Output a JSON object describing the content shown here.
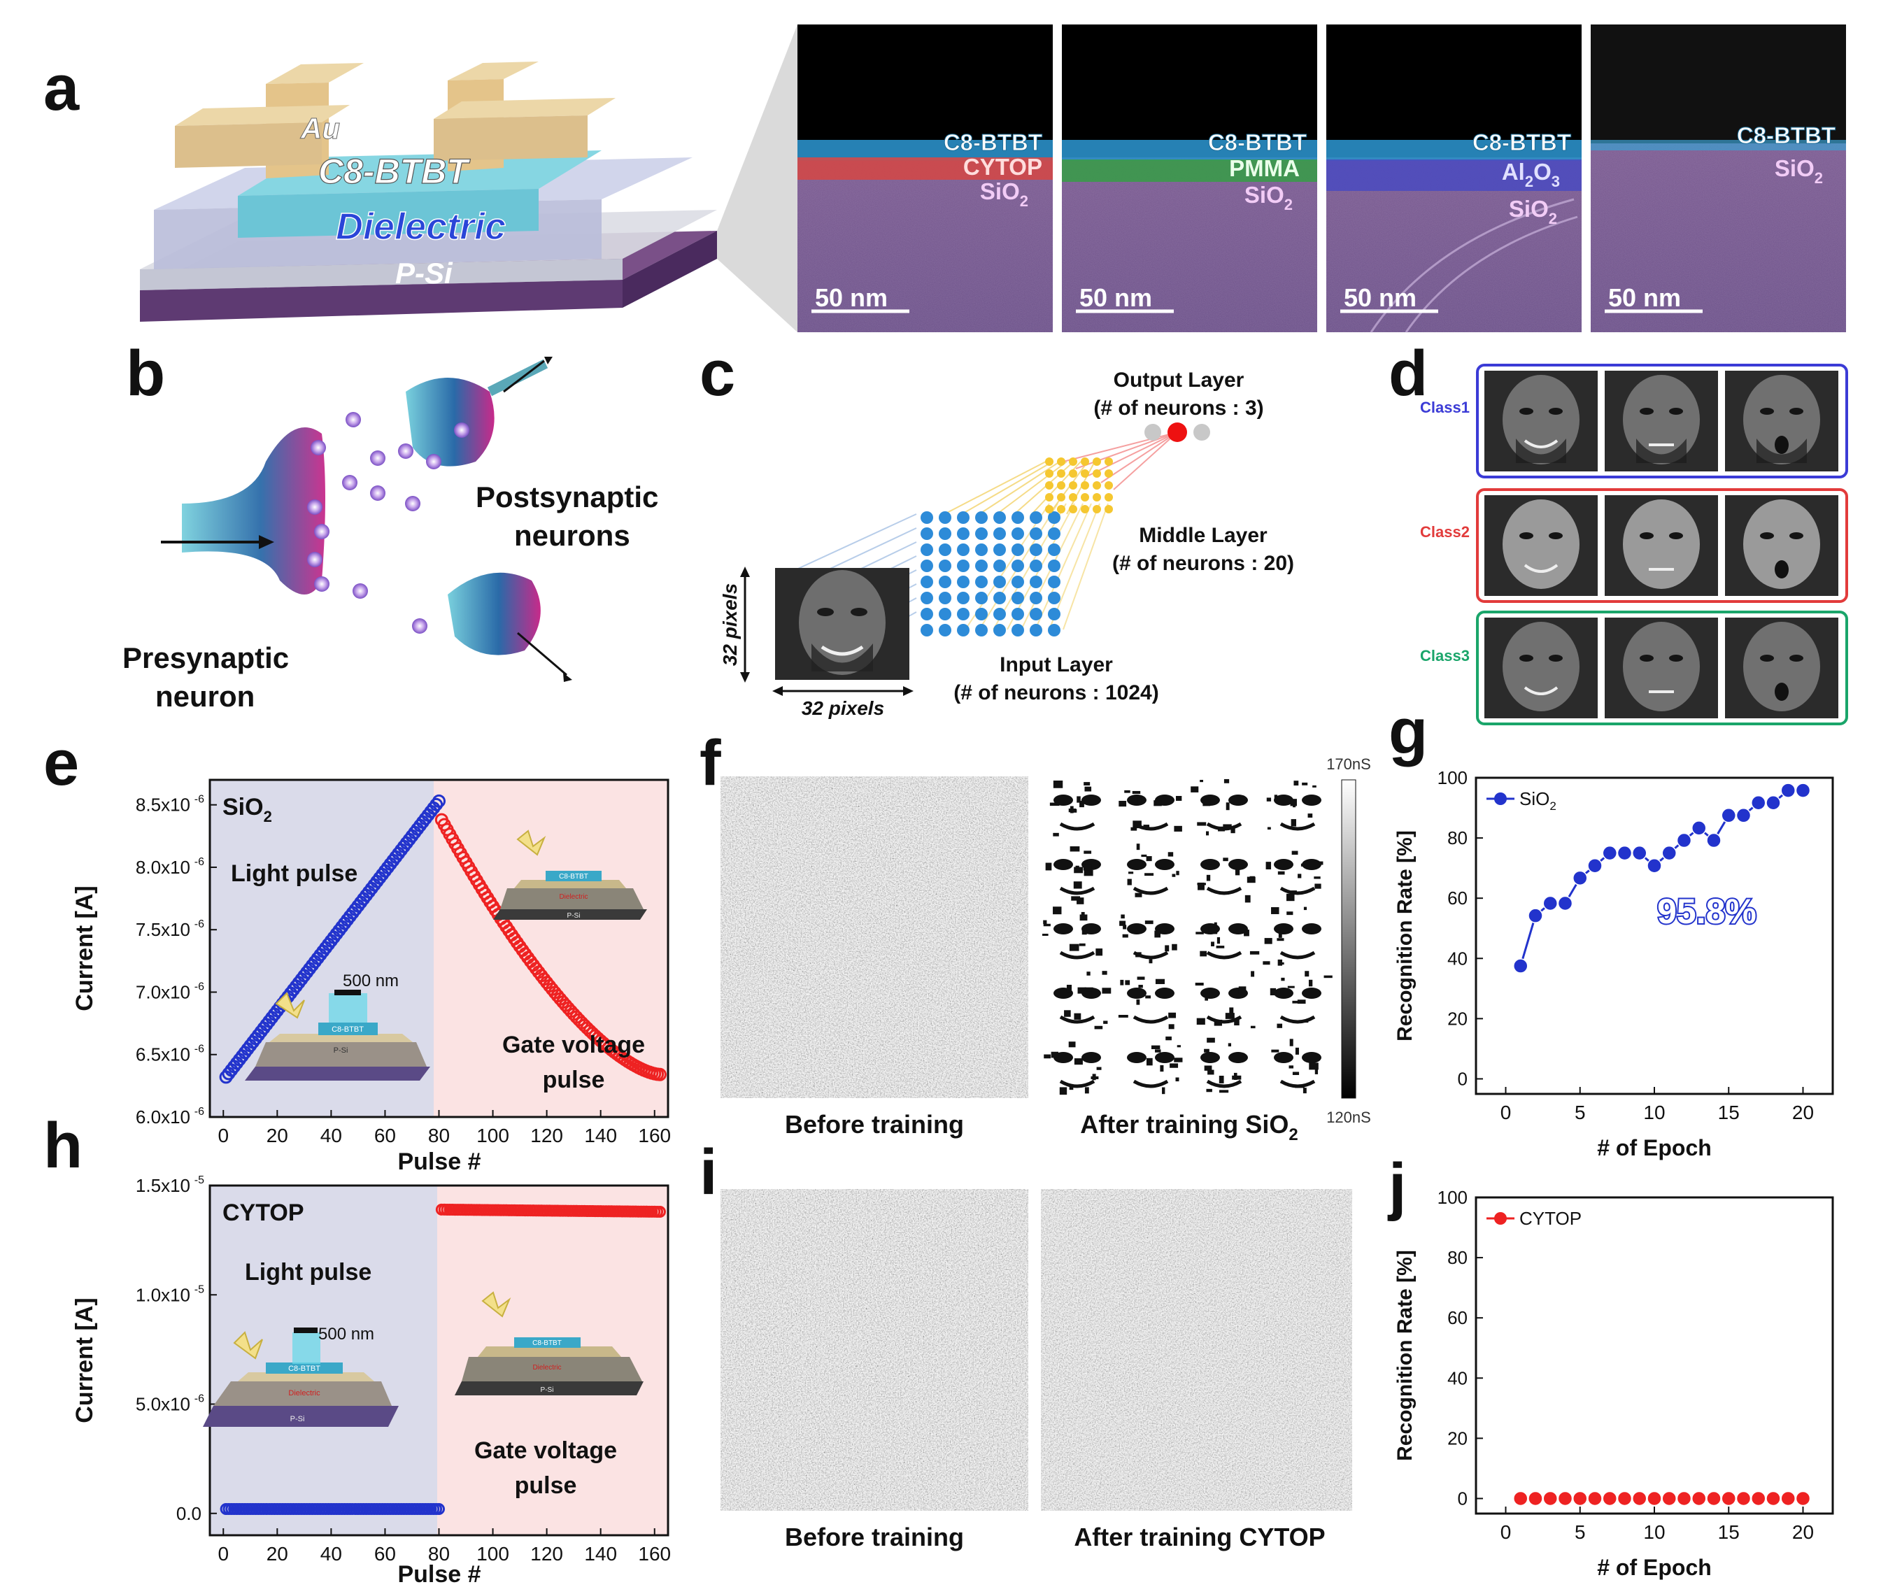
{
  "panels": {
    "a": "a",
    "b": "b",
    "c": "c",
    "d": "d",
    "e": "e",
    "f": "f",
    "g": "g",
    "h": "h",
    "i": "i",
    "j": "j"
  },
  "panel_a": {
    "device_layers": [
      "Au",
      "C8-BTBT",
      "Dielectric",
      "P-Si"
    ],
    "sem_images": [
      {
        "top": "C8-BTBT",
        "middle": "CYTOP",
        "bottom": "SiO",
        "bottom_sub": "2",
        "scale": "50 nm"
      },
      {
        "top": "C8-BTBT",
        "middle": "PMMA",
        "bottom": "SiO",
        "bottom_sub": "2",
        "scale": "50 nm"
      },
      {
        "top": "C8-BTBT",
        "middle": "Al",
        "middle_sub1": "2",
        "middle_mid": "O",
        "middle_sub2": "3",
        "bottom": "SiO",
        "bottom_sub": "2",
        "scale": "50 nm"
      },
      {
        "top": "C8-BTBT",
        "bottom": "SiO",
        "bottom_sub": "2",
        "scale": "50 nm"
      }
    ]
  },
  "panel_b": {
    "presynaptic": [
      "Presynaptic",
      "neuron"
    ],
    "postsynaptic": [
      "Postsynaptic",
      "neurons"
    ]
  },
  "panel_c": {
    "output": [
      "Output Layer",
      "(# of neurons : 3)"
    ],
    "middle": [
      "Middle Layer",
      "(# of neurons : 20)"
    ],
    "input": [
      "Input Layer",
      "(# of neurons : 1024)"
    ],
    "pixels_v": "32 pixels",
    "pixels_h": "32 pixels"
  },
  "panel_d": {
    "classes": [
      {
        "label": "Class1",
        "color": "#3b3bd6"
      },
      {
        "label": "Class2",
        "color": "#e23b3b"
      },
      {
        "label": "Class3",
        "color": "#1aa56a"
      }
    ]
  },
  "panel_e": {
    "material": "SiO",
    "material_sub": "2",
    "ylabel": "Current [A]",
    "xlabel": "Pulse #",
    "yticks": [
      "6.0x10",
      "6.5x10",
      "7.0x10",
      "7.5x10",
      "8.0x10",
      "8.5x10"
    ],
    "ytick_exp": "-6",
    "xticks": [
      "0",
      "20",
      "40",
      "60",
      "80",
      "100",
      "120",
      "140",
      "160"
    ],
    "light_label": "Light pulse",
    "gate_label": [
      "Gate voltage",
      "pulse"
    ],
    "wavelength": "500 nm",
    "inset_text": [
      "C8-BTBT",
      "Dielectric",
      "P-Si"
    ]
  },
  "panel_h": {
    "material": "CYTOP",
    "ylabel": "Current [A]",
    "xlabel": "Pulse #",
    "yticks": [
      "0.0",
      "5.0x10",
      "1.0x10",
      "1.5x10"
    ],
    "ytick_exps": [
      "",
      "-6",
      "-5",
      "-5"
    ],
    "xticks": [
      "0",
      "20",
      "40",
      "60",
      "80",
      "100",
      "120",
      "140",
      "160"
    ],
    "light_label": "Light pulse",
    "gate_label": [
      "Gate voltage",
      "pulse"
    ],
    "wavelength": "500 nm",
    "inset_text": [
      "C8-BTBT",
      "Dielectric",
      "P-Si"
    ]
  },
  "panel_f": {
    "before": "Before training",
    "after": "After training SiO",
    "after_sub": "2",
    "cbar_max": "170nS",
    "cbar_min": "120nS"
  },
  "panel_i": {
    "before": "Before training",
    "after": "After training CYTOP"
  },
  "panel_g": {
    "ylabel": "Recognition Rate [%]",
    "xlabel": "# of Epoch",
    "legend": "SiO",
    "legend_sub": "2",
    "annotation": "95.8%",
    "yticks": [
      "0",
      "20",
      "40",
      "60",
      "80",
      "100"
    ],
    "xticks": [
      "0",
      "5",
      "10",
      "15",
      "20"
    ]
  },
  "panel_j": {
    "ylabel": "Recognition Rate [%]",
    "xlabel": "# of Epoch",
    "legend": "CYTOP",
    "yticks": [
      "0",
      "20",
      "40",
      "60",
      "80",
      "100"
    ],
    "xticks": [
      "0",
      "5",
      "10",
      "15",
      "20"
    ]
  },
  "chart_data": [
    {
      "type": "scatter",
      "id": "e",
      "title": "SiO2",
      "xlabel": "Pulse #",
      "ylabel": "Current [A]",
      "xlim": [
        -5,
        165
      ],
      "ylim": [
        6e-06,
        8.7e-06
      ],
      "series": [
        {
          "name": "Light pulse",
          "color": "#2233cc",
          "x_start": 1,
          "x_end": 80,
          "y_start": 6.32e-06,
          "y_end": 8.53e-06,
          "shape": "linear"
        },
        {
          "name": "Gate voltage pulse",
          "color": "#ee2222",
          "x_start": 81,
          "x_end": 162,
          "y_start": 8.38e-06,
          "y_end": 6.34e-06,
          "shape": "decay"
        }
      ]
    },
    {
      "type": "scatter",
      "id": "h",
      "title": "CYTOP",
      "xlabel": "Pulse #",
      "ylabel": "Current [A]",
      "xlim": [
        -5,
        165
      ],
      "ylim": [
        -1e-06,
        1.5e-05
      ],
      "series": [
        {
          "name": "Light pulse",
          "color": "#2233cc",
          "x_start": 1,
          "x_end": 80,
          "y_start": 2e-07,
          "y_end": 2e-07,
          "shape": "linear"
        },
        {
          "name": "Gate voltage pulse",
          "color": "#ee2222",
          "x_start": 81,
          "x_end": 162,
          "y_start": 1.39e-05,
          "y_end": 1.38e-05,
          "shape": "linear"
        }
      ]
    },
    {
      "type": "line",
      "id": "g",
      "xlabel": "# of Epoch",
      "ylabel": "Recognition Rate [%]",
      "xlim": [
        -2,
        22
      ],
      "ylim": [
        -5,
        100
      ],
      "series": [
        {
          "name": "SiO2",
          "color": "#2233cc",
          "x": [
            1,
            2,
            3,
            4,
            5,
            6,
            7,
            8,
            9,
            10,
            11,
            12,
            13,
            14,
            15,
            16,
            17,
            18,
            19,
            20
          ],
          "values": [
            37.5,
            54.2,
            58.3,
            58.3,
            66.7,
            70.8,
            75,
            75,
            75,
            70.8,
            75,
            79.2,
            83.3,
            79.2,
            87.5,
            87.5,
            91.7,
            91.7,
            95.8,
            95.8
          ]
        }
      ]
    },
    {
      "type": "line",
      "id": "j",
      "xlabel": "# of Epoch",
      "ylabel": "Recognition Rate [%]",
      "xlim": [
        -2,
        22
      ],
      "ylim": [
        -5,
        100
      ],
      "series": [
        {
          "name": "CYTOP",
          "color": "#ee2222",
          "x": [
            1,
            2,
            3,
            4,
            5,
            6,
            7,
            8,
            9,
            10,
            11,
            12,
            13,
            14,
            15,
            16,
            17,
            18,
            19,
            20
          ],
          "values": [
            0,
            0,
            0,
            0,
            0,
            0,
            0,
            0,
            0,
            0,
            0,
            0,
            0,
            0,
            0,
            0,
            0,
            0,
            0,
            0
          ]
        }
      ]
    }
  ]
}
